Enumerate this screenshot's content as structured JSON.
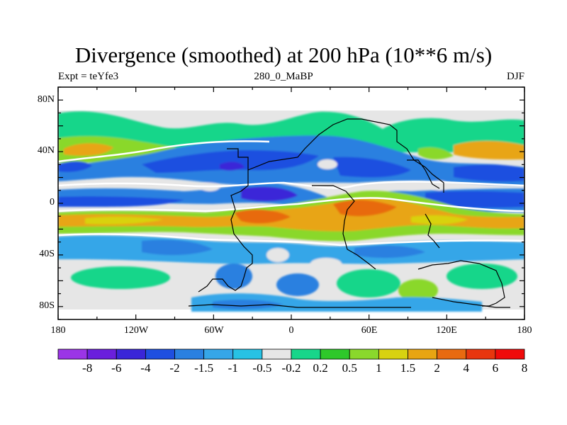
{
  "title": "Divergence (smoothed) at 200 hPa (10**6 m/s)",
  "subtitle_left": "Expt = teYfe3",
  "subtitle_center": "280_0_MaBP",
  "subtitle_right": "DJF",
  "lat_labels": [
    "80N",
    "40N",
    "0",
    "40S",
    "80S"
  ],
  "lon_labels": [
    "180",
    "120W",
    "60W",
    "0",
    "60E",
    "120E",
    "180"
  ],
  "colorbar": {
    "labels": [
      "-8",
      "-6",
      "-4",
      "-2",
      "-1.5",
      "-1",
      "-0.5",
      "-0.2",
      "0.2",
      "0.5",
      "1",
      "1.5",
      "2",
      "4",
      "6",
      "8"
    ],
    "colors": [
      "#9b35e6",
      "#6a1fdc",
      "#3a26d8",
      "#1f4fe0",
      "#2a80e0",
      "#36a6e8",
      "#27c2e4",
      "#e6e6e6",
      "#18d68a",
      "#2ec82a",
      "#8ad82c",
      "#d8d210",
      "#e8a512",
      "#e86a10",
      "#e8360e",
      "#f00a0a"
    ]
  },
  "map_colors": {
    "background": "#e6e6e6",
    "neg_medium": "#2a80e0",
    "neg_strong": "#1f4fe0",
    "neg_very": "#3a26d8",
    "neg_light": "#36a6e8",
    "pos_green": "#18d68a",
    "pos_lime": "#8ad82c",
    "pos_yellow": "#d8d210",
    "pos_orange": "#e8a512",
    "pos_red": "#e86a10",
    "contour": "#ffffff",
    "coast": "#000000"
  }
}
